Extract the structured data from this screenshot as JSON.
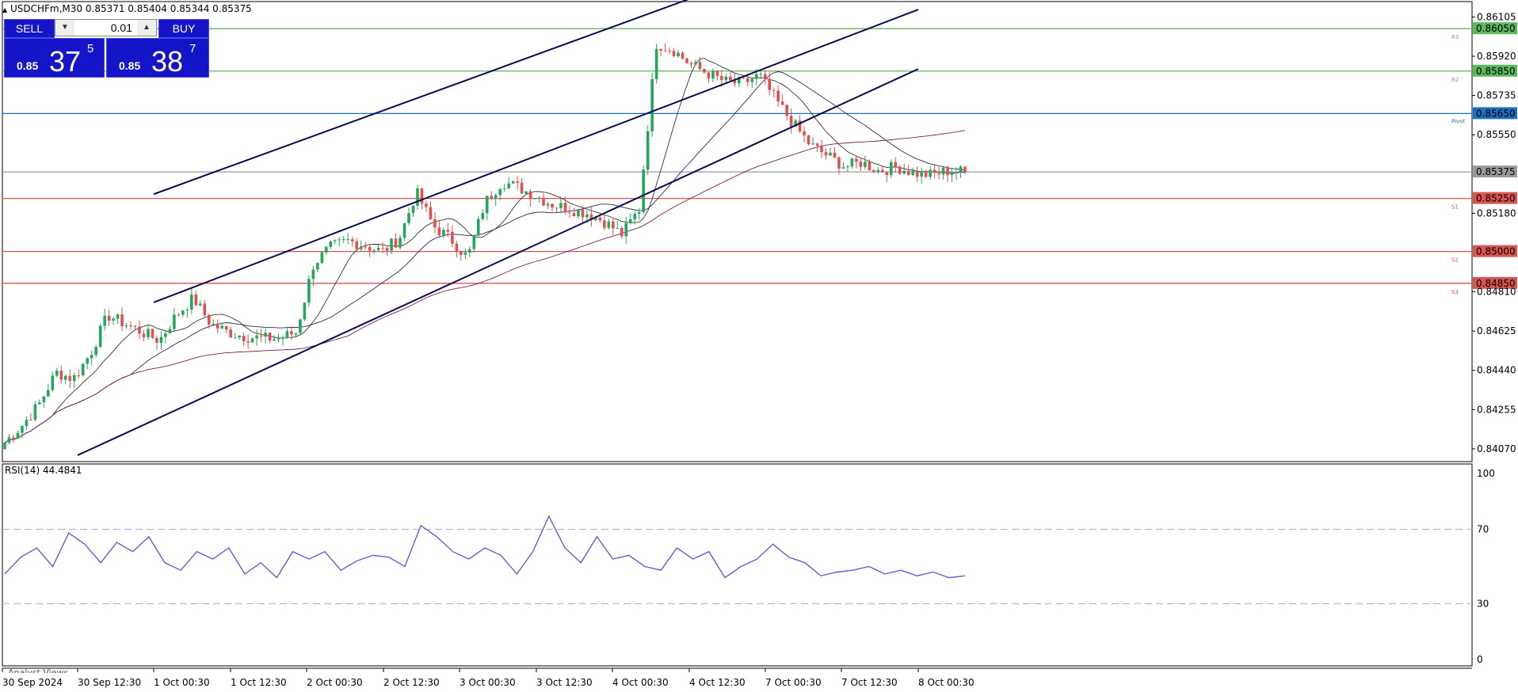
{
  "header": {
    "symbol_line": "USDCHFm,M30  0.85371 0.85404 0.85344 0.85375"
  },
  "trade_panel": {
    "sell_label": "SELL",
    "buy_label": "BUY",
    "lot_value": "0.01",
    "bid_prefix": "0.85",
    "bid_big": "37",
    "bid_sup": "5",
    "ask_prefix": "0.85",
    "ask_big": "38",
    "ask_sup": "7",
    "colors": {
      "button_bg": "#1414c8",
      "text": "#ffffff"
    }
  },
  "bottom_tab_label": "Analyst Views",
  "chart_data": [
    {
      "type": "candlestick",
      "symbol": "USDCHFm",
      "timeframe": "M30",
      "ohlc_last": {
        "open": 0.85371,
        "high": 0.85404,
        "low": 0.85344,
        "close": 0.85375
      },
      "ylim": [
        0.8401,
        0.8617
      ],
      "y_ticks": [
        "0.86105",
        "0.85920",
        "0.85735",
        "0.85550",
        "0.85180",
        "0.84810",
        "0.84625",
        "0.84440",
        "0.84255",
        "0.84070"
      ],
      "x_tick_labels": [
        "30 Sep 2024",
        "30 Sep 12:30",
        "1 Oct 00:30",
        "1 Oct 12:30",
        "2 Oct 00:30",
        "2 Oct 12:30",
        "3 Oct 00:30",
        "3 Oct 12:30",
        "4 Oct 00:30",
        "4 Oct 12:30",
        "7 Oct 00:30",
        "7 Oct 12:30",
        "8 Oct 00:30"
      ],
      "close_path_approx": [
        0.841,
        0.8418,
        0.8428,
        0.8443,
        0.844,
        0.8452,
        0.847,
        0.8466,
        0.8462,
        0.8458,
        0.847,
        0.8478,
        0.8466,
        0.8462,
        0.846,
        0.8459,
        0.8459,
        0.8462,
        0.8494,
        0.8502,
        0.8505,
        0.8503,
        0.85,
        0.8506,
        0.8528,
        0.8512,
        0.8506,
        0.8497,
        0.8523,
        0.8533,
        0.853,
        0.8526,
        0.8522,
        0.852,
        0.8518,
        0.8514,
        0.8508,
        0.852,
        0.8598,
        0.8595,
        0.8588,
        0.8584,
        0.858,
        0.8579,
        0.8583,
        0.8571,
        0.856,
        0.855,
        0.8545,
        0.854,
        0.8542,
        0.8538,
        0.854,
        0.8537,
        0.8536,
        0.8538,
        0.85375
      ],
      "overlay_lines": [
        {
          "name": "R3",
          "value": 0.8605,
          "label": "0.86050",
          "color": "#5cb85c"
        },
        {
          "name": "R2",
          "value": 0.8585,
          "label": "0.85850",
          "color": "#5cb85c"
        },
        {
          "name": "Pivot",
          "value": 0.8565,
          "label": "0.85650",
          "color": "#1e6fc0"
        },
        {
          "name": "Current",
          "value": 0.85375,
          "label": "0.85375",
          "color": "#9a9a9a"
        },
        {
          "name": "S1",
          "value": 0.8525,
          "label": "0.85250",
          "color": "#d9534f"
        },
        {
          "name": "S2",
          "value": 0.85,
          "label": "0.85000",
          "color": "#d9534f"
        },
        {
          "name": "S3",
          "value": 0.8485,
          "label": "0.84850",
          "color": "#d9534f"
        }
      ],
      "level_tags": [
        "R3",
        "R2",
        "Pivot",
        "S1",
        "S2",
        "S3"
      ],
      "channel_lines": [
        {
          "from": [
            "1 Oct 00:30",
            0.8527
          ],
          "to": [
            "4 Oct 12:30",
            0.8619
          ]
        },
        {
          "from": [
            "1 Oct 00:30",
            0.8476
          ],
          "to": [
            "8 Oct 00:30",
            0.8614
          ]
        },
        {
          "from": [
            "30 Sep 12:30",
            0.8404
          ],
          "to": [
            "8 Oct 00:30",
            0.8586
          ]
        }
      ],
      "colors": {
        "up": "#26a65b",
        "down": "#e05050",
        "channel": "#0a0a50"
      }
    },
    {
      "type": "line",
      "title": "RSI(14) 44.4841",
      "ylim": [
        0,
        100
      ],
      "y_ticks": [
        "100",
        "70",
        "30",
        "0"
      ],
      "levels": [
        70,
        30
      ],
      "values_approx": [
        46,
        55,
        60,
        50,
        68,
        62,
        52,
        63,
        58,
        66,
        52,
        48,
        58,
        54,
        60,
        46,
        52,
        44,
        58,
        54,
        58,
        48,
        53,
        56,
        55,
        50,
        72,
        66,
        58,
        54,
        60,
        56,
        46,
        58,
        77,
        60,
        52,
        66,
        54,
        56,
        50,
        48,
        60,
        54,
        58,
        44,
        50,
        54,
        62,
        55,
        52,
        45,
        47,
        48,
        50,
        46,
        48,
        45,
        47,
        44,
        45
      ],
      "color": "#6a5acd"
    }
  ]
}
